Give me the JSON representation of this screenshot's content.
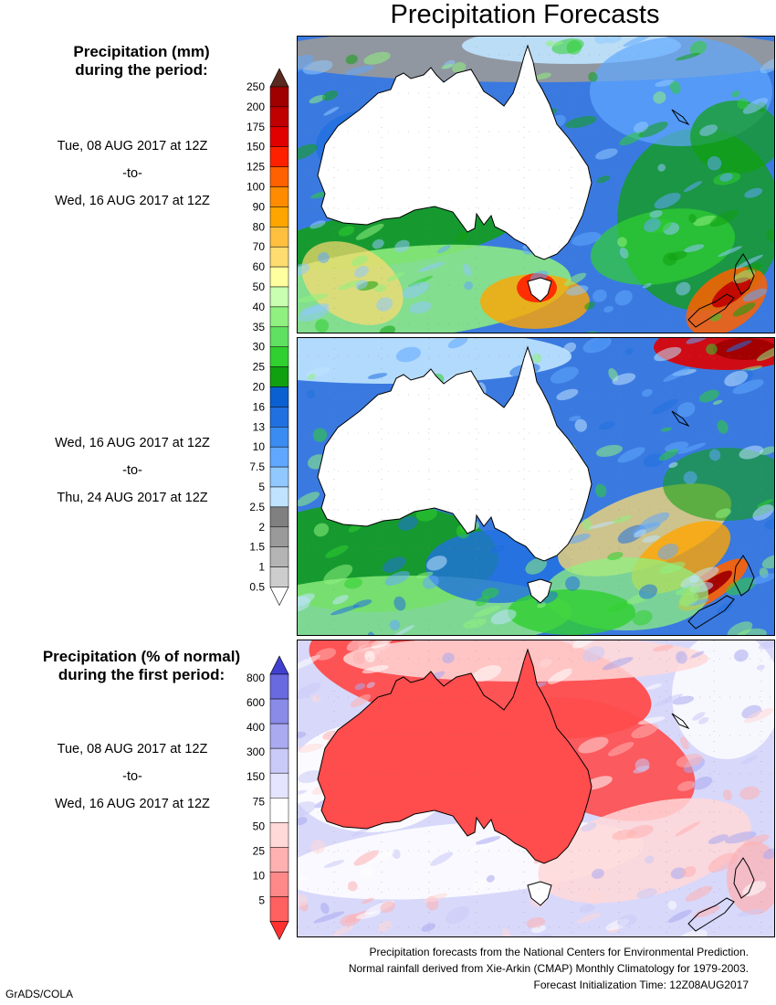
{
  "title": "Precipitation Forecasts",
  "legend_mm": {
    "heading_line1": "Precipitation (mm)",
    "heading_line2": "during the period:",
    "levels": [
      "250",
      "200",
      "175",
      "150",
      "125",
      "100",
      "90",
      "80",
      "70",
      "60",
      "50",
      "40",
      "35",
      "30",
      "25",
      "20",
      "16",
      "13",
      "10",
      "7.5",
      "5",
      "2.5",
      "2",
      "1.5",
      "1",
      "0.5"
    ],
    "colors": [
      "#a00000",
      "#c00000",
      "#e00000",
      "#ff2000",
      "#ff6000",
      "#ff8c00",
      "#ffa500",
      "#ffc040",
      "#ffdc70",
      "#ffffa0",
      "#c8ffb0",
      "#90f080",
      "#60e060",
      "#30d030",
      "#10a010",
      "#0a60d0",
      "#2070e0",
      "#3a8cf0",
      "#60a8ff",
      "#90c8ff",
      "#c0e4ff",
      "#808080",
      "#9a9a9a",
      "#b4b4b4",
      "#cdcdcd"
    ],
    "top_arrow_color": "#5a2a20",
    "bottom_arrow_color": "#ffffff"
  },
  "legend_pct": {
    "heading_line1": "Precipitation (% of normal)",
    "heading_line2": "during the first period:",
    "levels": [
      "800",
      "600",
      "400",
      "300",
      "150",
      "75",
      "50",
      "25",
      "10",
      "5"
    ],
    "colors": [
      "#6a6ae0",
      "#8a8ae8",
      "#aaaaf0",
      "#cacaf8",
      "#e4e4ff",
      "#ffffff",
      "#ffd8d8",
      "#ffb0b0",
      "#ff8888",
      "#ff6060"
    ],
    "top_arrow_color": "#4040d0",
    "bottom_arrow_color": "#ff3030"
  },
  "periods": [
    {
      "start": "Tue, 08 AUG 2017 at 12Z",
      "sep": "-to-",
      "end": "Wed, 16 AUG 2017 at 12Z"
    },
    {
      "start": "Wed, 16 AUG 2017 at 12Z",
      "sep": "-to-",
      "end": "Thu, 24 AUG 2017 at 12Z"
    },
    {
      "start": "Tue, 08 AUG 2017 at 12Z",
      "sep": "-to-",
      "end": "Wed, 16 AUG 2017 at 12Z"
    }
  ],
  "panels": [
    {
      "name": "period-1-precip-map",
      "land_color": "#ffffff",
      "ocean_color": "#3a7ae0"
    },
    {
      "name": "period-2-precip-map",
      "land_color": "#ffffff",
      "ocean_color": "#3a7ae0"
    },
    {
      "name": "percent-of-normal-map",
      "land_color": "#ff4c4c",
      "ocean_color": "#d8d8fa"
    }
  ],
  "footer": {
    "line1": "Precipitation forecasts from the National Centers for Environmental Prediction.",
    "line2": "Normal rainfall derived from Xie-Arkin (CMAP) Monthly Climatology for 1979-2003.",
    "line3": "Forecast Initialization Time: 12Z08AUG2017"
  },
  "credit": "GrADS/COLA"
}
